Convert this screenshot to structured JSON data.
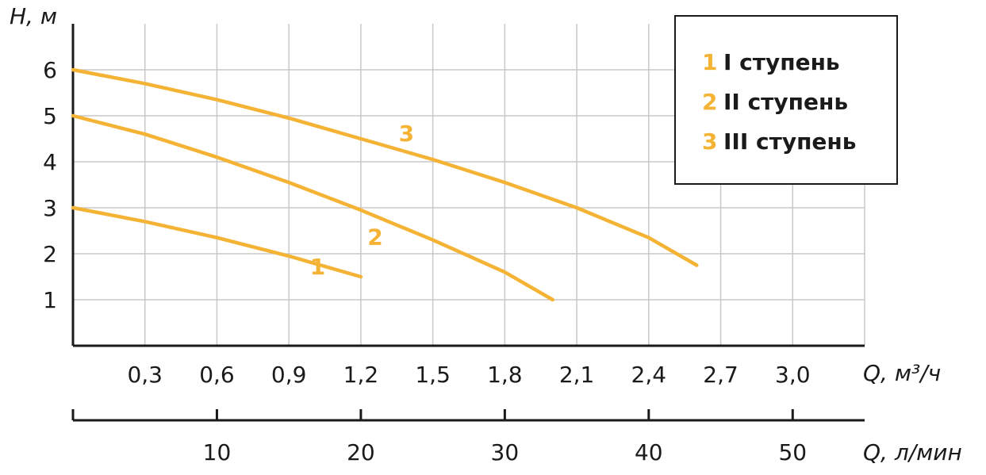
{
  "chart_data": {
    "type": "line",
    "y_axis_label": "H, м",
    "x_axis_label": "Q, м³/ч",
    "x2_axis_label": "Q, л/мин",
    "x_ticks": [
      "0,3",
      "0,6",
      "0,9",
      "1,2",
      "1,5",
      "1,8",
      "2,1",
      "2,4",
      "2,7",
      "3,0"
    ],
    "x2_ticks": [
      "10",
      "20",
      "30",
      "40",
      "50"
    ],
    "y_ticks": [
      "1",
      "2",
      "3",
      "4",
      "5",
      "6"
    ],
    "xlim": [
      0,
      3.3
    ],
    "ylim": [
      0,
      7
    ],
    "grid": true,
    "curve_color": "#F5B335",
    "series": [
      {
        "name": "1",
        "x": [
          0,
          0.3,
          0.6,
          0.9,
          1.2
        ],
        "y": [
          3.0,
          2.7,
          2.35,
          1.95,
          1.5
        ]
      },
      {
        "name": "2",
        "x": [
          0,
          0.3,
          0.6,
          0.9,
          1.2,
          1.5,
          1.8,
          2.0
        ],
        "y": [
          5.0,
          4.6,
          4.1,
          3.55,
          2.95,
          2.3,
          1.6,
          1.0
        ]
      },
      {
        "name": "3",
        "x": [
          0,
          0.3,
          0.6,
          0.9,
          1.2,
          1.5,
          1.8,
          2.1,
          2.4,
          2.6
        ],
        "y": [
          6.0,
          5.7,
          5.35,
          4.95,
          4.5,
          4.05,
          3.55,
          3.0,
          2.35,
          1.75
        ]
      }
    ],
    "legend": {
      "position": "top-right",
      "items": [
        {
          "num": "1",
          "label": "I ступень"
        },
        {
          "num": "2",
          "label": "II ступень"
        },
        {
          "num": "3",
          "label": "III ступень"
        }
      ]
    }
  }
}
